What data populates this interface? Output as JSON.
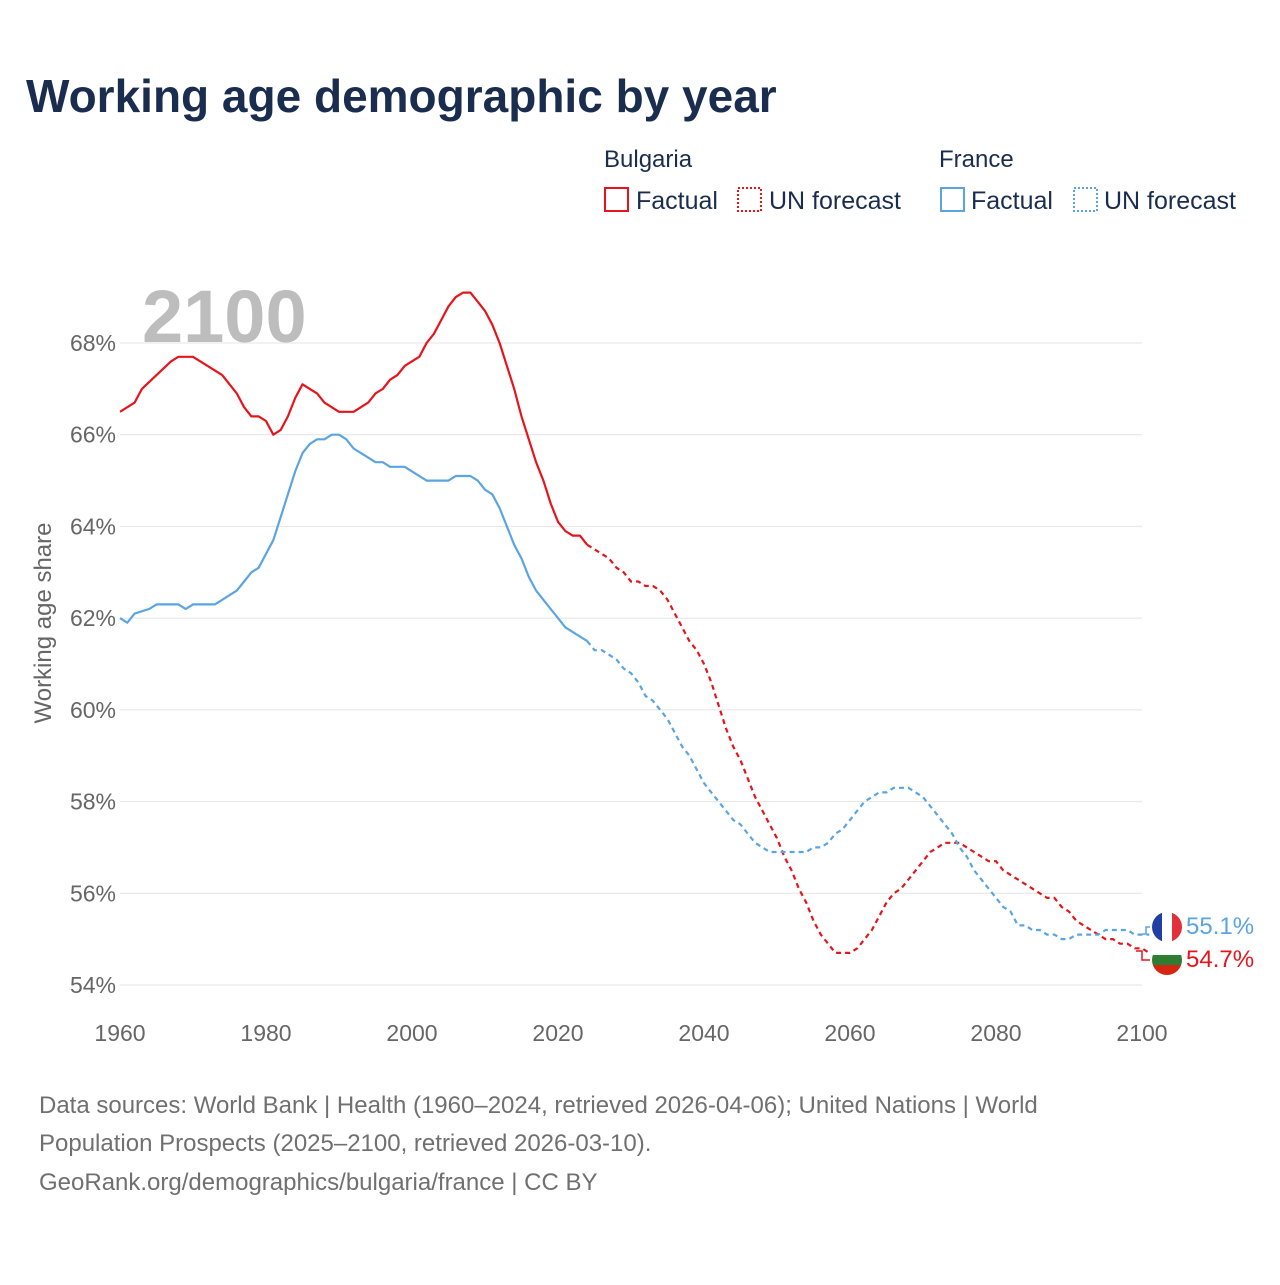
{
  "title": "Working age demographic by year",
  "legend": {
    "groups": [
      {
        "country": "Bulgaria",
        "color": "#e8141b",
        "factual_label": "Factual",
        "forecast_label": "UN forecast"
      },
      {
        "country": "France",
        "color": "#5ba4e2",
        "factual_label": "Factual",
        "forecast_label": "UN forecast"
      }
    ]
  },
  "year_watermark": "2100",
  "end_labels": {
    "france": "55.1%",
    "bulgaria": "54.7%"
  },
  "flag_colors": {
    "france": [
      "#1f3fa5",
      "#ffffff",
      "#e1303c"
    ],
    "bulgaria": [
      "#ffffff",
      "#2e7d32",
      "#d62612"
    ]
  },
  "source_lines": [
    "Data sources: World Bank | Health (1960–2024, retrieved 2026-04-06); United Nations | World",
    "Population Prospects (2025–2100, retrieved 2026-03-10).",
    "GeoRank.org/demographics/bulgaria/france | CC BY"
  ],
  "chart_data": {
    "type": "line",
    "title": "Working age demographic by year",
    "xlabel": "",
    "ylabel": "Working age share",
    "xlim": [
      1960,
      2100
    ],
    "ylim": [
      53.8,
      69.3
    ],
    "xticks": [
      1960,
      1980,
      2000,
      2020,
      2040,
      2060,
      2080,
      2100
    ],
    "yticks": [
      54,
      56,
      58,
      60,
      62,
      64,
      66,
      68
    ],
    "ytick_suffix": "%",
    "grid": true,
    "forecast_start_year": 2024,
    "series": [
      {
        "name": "Bulgaria",
        "color": "#e8141b",
        "points": [
          [
            1960,
            66.5
          ],
          [
            1962,
            66.7
          ],
          [
            1963,
            67.0
          ],
          [
            1965,
            67.3
          ],
          [
            1967,
            67.6
          ],
          [
            1968,
            67.7
          ],
          [
            1970,
            67.7
          ],
          [
            1972,
            67.5
          ],
          [
            1974,
            67.3
          ],
          [
            1976,
            66.9
          ],
          [
            1977,
            66.6
          ],
          [
            1978,
            66.4
          ],
          [
            1979,
            66.4
          ],
          [
            1980,
            66.3
          ],
          [
            1981,
            66.0
          ],
          [
            1982,
            66.1
          ],
          [
            1983,
            66.4
          ],
          [
            1984,
            66.8
          ],
          [
            1985,
            67.1
          ],
          [
            1986,
            67.0
          ],
          [
            1987,
            66.9
          ],
          [
            1988,
            66.7
          ],
          [
            1989,
            66.6
          ],
          [
            1990,
            66.5
          ],
          [
            1992,
            66.5
          ],
          [
            1994,
            66.7
          ],
          [
            1995,
            66.9
          ],
          [
            1996,
            67.0
          ],
          [
            1997,
            67.2
          ],
          [
            1998,
            67.3
          ],
          [
            1999,
            67.5
          ],
          [
            2000,
            67.6
          ],
          [
            2001,
            67.7
          ],
          [
            2002,
            68.0
          ],
          [
            2003,
            68.2
          ],
          [
            2004,
            68.5
          ],
          [
            2005,
            68.8
          ],
          [
            2006,
            69.0
          ],
          [
            2007,
            69.1
          ],
          [
            2008,
            69.1
          ],
          [
            2009,
            68.9
          ],
          [
            2010,
            68.7
          ],
          [
            2011,
            68.4
          ],
          [
            2012,
            68.0
          ],
          [
            2013,
            67.5
          ],
          [
            2014,
            67.0
          ],
          [
            2015,
            66.4
          ],
          [
            2016,
            65.9
          ],
          [
            2017,
            65.4
          ],
          [
            2018,
            65.0
          ],
          [
            2019,
            64.5
          ],
          [
            2020,
            64.1
          ],
          [
            2021,
            63.9
          ],
          [
            2022,
            63.8
          ],
          [
            2023,
            63.8
          ],
          [
            2024,
            63.6
          ],
          [
            2025,
            63.5
          ],
          [
            2026,
            63.4
          ],
          [
            2027,
            63.3
          ],
          [
            2028,
            63.1
          ],
          [
            2029,
            63.0
          ],
          [
            2030,
            62.8
          ],
          [
            2031,
            62.8
          ],
          [
            2032,
            62.7
          ],
          [
            2033,
            62.7
          ],
          [
            2034,
            62.6
          ],
          [
            2035,
            62.4
          ],
          [
            2036,
            62.1
          ],
          [
            2037,
            61.8
          ],
          [
            2038,
            61.5
          ],
          [
            2039,
            61.3
          ],
          [
            2040,
            61.0
          ],
          [
            2041,
            60.6
          ],
          [
            2042,
            60.1
          ],
          [
            2043,
            59.6
          ],
          [
            2044,
            59.2
          ],
          [
            2045,
            58.9
          ],
          [
            2046,
            58.5
          ],
          [
            2047,
            58.1
          ],
          [
            2048,
            57.8
          ],
          [
            2049,
            57.5
          ],
          [
            2050,
            57.2
          ],
          [
            2051,
            56.8
          ],
          [
            2052,
            56.5
          ],
          [
            2053,
            56.1
          ],
          [
            2054,
            55.8
          ],
          [
            2055,
            55.4
          ],
          [
            2056,
            55.1
          ],
          [
            2057,
            54.9
          ],
          [
            2058,
            54.7
          ],
          [
            2059,
            54.7
          ],
          [
            2060,
            54.7
          ],
          [
            2061,
            54.8
          ],
          [
            2062,
            55.0
          ],
          [
            2063,
            55.2
          ],
          [
            2064,
            55.5
          ],
          [
            2065,
            55.8
          ],
          [
            2066,
            56.0
          ],
          [
            2067,
            56.1
          ],
          [
            2068,
            56.3
          ],
          [
            2069,
            56.5
          ],
          [
            2070,
            56.7
          ],
          [
            2071,
            56.9
          ],
          [
            2072,
            57.0
          ],
          [
            2073,
            57.1
          ],
          [
            2074,
            57.1
          ],
          [
            2075,
            57.1
          ],
          [
            2076,
            57.0
          ],
          [
            2077,
            56.9
          ],
          [
            2078,
            56.8
          ],
          [
            2079,
            56.7
          ],
          [
            2080,
            56.7
          ],
          [
            2081,
            56.5
          ],
          [
            2082,
            56.4
          ],
          [
            2083,
            56.3
          ],
          [
            2084,
            56.2
          ],
          [
            2085,
            56.1
          ],
          [
            2086,
            56.0
          ],
          [
            2087,
            55.9
          ],
          [
            2088,
            55.9
          ],
          [
            2089,
            55.7
          ],
          [
            2090,
            55.6
          ],
          [
            2091,
            55.4
          ],
          [
            2092,
            55.3
          ],
          [
            2093,
            55.2
          ],
          [
            2094,
            55.1
          ],
          [
            2095,
            55.0
          ],
          [
            2096,
            55.0
          ],
          [
            2097,
            54.9
          ],
          [
            2098,
            54.9
          ],
          [
            2099,
            54.8
          ],
          [
            2100,
            54.8
          ],
          [
            2101,
            54.7
          ]
        ]
      },
      {
        "name": "France",
        "color": "#5ba4e2",
        "points": [
          [
            1960,
            62.0
          ],
          [
            1961,
            61.9
          ],
          [
            1962,
            62.1
          ],
          [
            1964,
            62.2
          ],
          [
            1965,
            62.3
          ],
          [
            1966,
            62.3
          ],
          [
            1968,
            62.3
          ],
          [
            1969,
            62.2
          ],
          [
            1970,
            62.3
          ],
          [
            1971,
            62.3
          ],
          [
            1973,
            62.3
          ],
          [
            1975,
            62.5
          ],
          [
            1976,
            62.6
          ],
          [
            1977,
            62.8
          ],
          [
            1978,
            63.0
          ],
          [
            1979,
            63.1
          ],
          [
            1980,
            63.4
          ],
          [
            1981,
            63.7
          ],
          [
            1982,
            64.2
          ],
          [
            1983,
            64.7
          ],
          [
            1984,
            65.2
          ],
          [
            1985,
            65.6
          ],
          [
            1986,
            65.8
          ],
          [
            1987,
            65.9
          ],
          [
            1988,
            65.9
          ],
          [
            1989,
            66.0
          ],
          [
            1990,
            66.0
          ],
          [
            1991,
            65.9
          ],
          [
            1992,
            65.7
          ],
          [
            1993,
            65.6
          ],
          [
            1994,
            65.5
          ],
          [
            1995,
            65.4
          ],
          [
            1996,
            65.4
          ],
          [
            1997,
            65.3
          ],
          [
            1998,
            65.3
          ],
          [
            1999,
            65.3
          ],
          [
            2000,
            65.2
          ],
          [
            2001,
            65.1
          ],
          [
            2002,
            65.0
          ],
          [
            2003,
            65.0
          ],
          [
            2004,
            65.0
          ],
          [
            2005,
            65.0
          ],
          [
            2006,
            65.1
          ],
          [
            2007,
            65.1
          ],
          [
            2008,
            65.1
          ],
          [
            2009,
            65.0
          ],
          [
            2010,
            64.8
          ],
          [
            2011,
            64.7
          ],
          [
            2012,
            64.4
          ],
          [
            2013,
            64.0
          ],
          [
            2014,
            63.6
          ],
          [
            2015,
            63.3
          ],
          [
            2016,
            62.9
          ],
          [
            2017,
            62.6
          ],
          [
            2018,
            62.4
          ],
          [
            2019,
            62.2
          ],
          [
            2020,
            62.0
          ],
          [
            2021,
            61.8
          ],
          [
            2022,
            61.7
          ],
          [
            2023,
            61.6
          ],
          [
            2024,
            61.5
          ],
          [
            2025,
            61.3
          ],
          [
            2026,
            61.3
          ],
          [
            2027,
            61.2
          ],
          [
            2028,
            61.1
          ],
          [
            2029,
            60.9
          ],
          [
            2030,
            60.8
          ],
          [
            2031,
            60.6
          ],
          [
            2032,
            60.3
          ],
          [
            2033,
            60.2
          ],
          [
            2034,
            60.0
          ],
          [
            2035,
            59.8
          ],
          [
            2036,
            59.5
          ],
          [
            2037,
            59.2
          ],
          [
            2038,
            59.0
          ],
          [
            2039,
            58.7
          ],
          [
            2040,
            58.4
          ],
          [
            2041,
            58.2
          ],
          [
            2042,
            58.0
          ],
          [
            2043,
            57.8
          ],
          [
            2044,
            57.6
          ],
          [
            2045,
            57.5
          ],
          [
            2046,
            57.3
          ],
          [
            2047,
            57.1
          ],
          [
            2048,
            57.0
          ],
          [
            2049,
            56.9
          ],
          [
            2050,
            56.9
          ],
          [
            2051,
            56.9
          ],
          [
            2052,
            56.9
          ],
          [
            2053,
            56.9
          ],
          [
            2054,
            56.9
          ],
          [
            2055,
            57.0
          ],
          [
            2056,
            57.0
          ],
          [
            2057,
            57.1
          ],
          [
            2058,
            57.3
          ],
          [
            2059,
            57.4
          ],
          [
            2060,
            57.6
          ],
          [
            2061,
            57.8
          ],
          [
            2062,
            58.0
          ],
          [
            2063,
            58.1
          ],
          [
            2064,
            58.2
          ],
          [
            2065,
            58.2
          ],
          [
            2066,
            58.3
          ],
          [
            2067,
            58.3
          ],
          [
            2068,
            58.3
          ],
          [
            2069,
            58.2
          ],
          [
            2070,
            58.1
          ],
          [
            2071,
            57.9
          ],
          [
            2072,
            57.7
          ],
          [
            2073,
            57.5
          ],
          [
            2074,
            57.3
          ],
          [
            2075,
            57.0
          ],
          [
            2076,
            56.8
          ],
          [
            2077,
            56.5
          ],
          [
            2078,
            56.3
          ],
          [
            2079,
            56.1
          ],
          [
            2080,
            55.9
          ],
          [
            2081,
            55.7
          ],
          [
            2082,
            55.6
          ],
          [
            2083,
            55.3
          ],
          [
            2084,
            55.3
          ],
          [
            2085,
            55.2
          ],
          [
            2086,
            55.2
          ],
          [
            2087,
            55.1
          ],
          [
            2088,
            55.1
          ],
          [
            2089,
            55.0
          ],
          [
            2090,
            55.0
          ],
          [
            2091,
            55.1
          ],
          [
            2092,
            55.1
          ],
          [
            2093,
            55.1
          ],
          [
            2094,
            55.1
          ],
          [
            2095,
            55.2
          ],
          [
            2096,
            55.2
          ],
          [
            2097,
            55.2
          ],
          [
            2098,
            55.2
          ],
          [
            2099,
            55.1
          ],
          [
            2100,
            55.1
          ],
          [
            2101,
            55.1
          ]
        ]
      }
    ]
  }
}
